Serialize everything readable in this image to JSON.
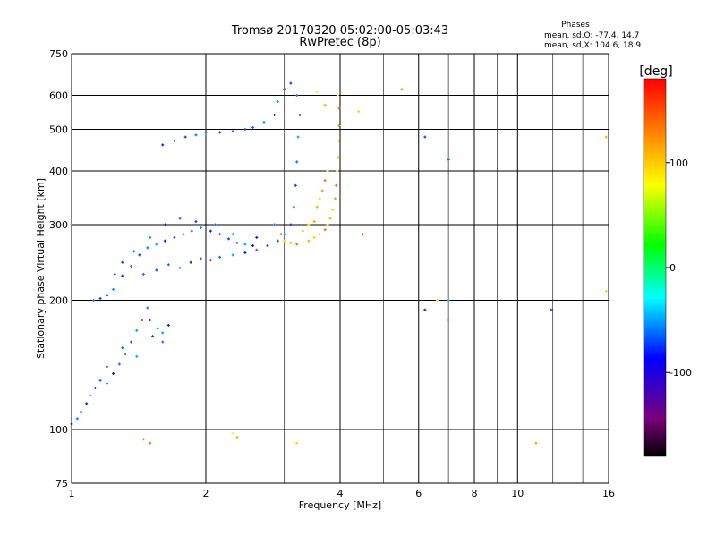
{
  "chart_data": {
    "type": "scatter",
    "title": "Tromsø 20170320 05:02:00-05:03:43",
    "subtitle": "RwPretec (8p)",
    "xlabel": "Frequency [MHz]",
    "ylabel": "Stationary phase Virtual Height [km]",
    "x_scale": "log",
    "y_scale": "log",
    "xlim": [
      1,
      16
    ],
    "ylim": [
      75,
      750
    ],
    "x_ticks": [
      "1",
      "2",
      "4",
      "6",
      "8",
      "10",
      "16"
    ],
    "y_ticks": [
      "75",
      "100",
      "200",
      "300",
      "400",
      "500",
      "600",
      "750"
    ],
    "grid": true,
    "phases_box": {
      "heading": "Phases",
      "line_o": "mean, sd,O: -77.4, 14.7",
      "line_x": "mean, sd,X: 104.6, 18.9"
    },
    "colorbar": {
      "unit": "[deg]",
      "range": [
        -180,
        180
      ],
      "ticks": [
        "100",
        "0",
        "-100"
      ],
      "colors": [
        "#000000",
        "#7a007a",
        "#0000ff",
        "#00ffff",
        "#00ff00",
        "#ffff00",
        "#ff8000",
        "#ff0000"
      ]
    },
    "series": [
      {
        "color_hint": "blue/cyan (O-mode)",
        "points": [
          [
            1.0,
            103
          ],
          [
            1.03,
            106
          ],
          [
            1.05,
            110
          ],
          [
            1.08,
            115
          ],
          [
            1.1,
            120
          ],
          [
            1.13,
            125
          ],
          [
            1.16,
            130
          ],
          [
            1.2,
            128
          ],
          [
            1.24,
            135
          ],
          [
            1.28,
            142
          ],
          [
            1.32,
            150
          ],
          [
            1.36,
            160
          ],
          [
            1.4,
            170
          ],
          [
            1.44,
            180
          ],
          [
            1.48,
            192
          ],
          [
            1.52,
            165
          ],
          [
            1.56,
            172
          ],
          [
            1.6,
            168
          ],
          [
            1.65,
            175
          ],
          [
            1.12,
            200
          ],
          [
            1.16,
            202
          ],
          [
            1.2,
            205
          ],
          [
            1.24,
            212
          ],
          [
            1.3,
            228
          ],
          [
            1.36,
            240
          ],
          [
            1.42,
            255
          ],
          [
            1.48,
            265
          ],
          [
            1.55,
            270
          ],
          [
            1.62,
            275
          ],
          [
            1.7,
            280
          ],
          [
            1.78,
            285
          ],
          [
            1.86,
            290
          ],
          [
            1.95,
            295
          ],
          [
            2.05,
            290
          ],
          [
            2.15,
            285
          ],
          [
            2.25,
            278
          ],
          [
            2.35,
            272
          ],
          [
            2.45,
            270
          ],
          [
            2.55,
            268
          ],
          [
            1.45,
            230
          ],
          [
            1.55,
            235
          ],
          [
            1.65,
            242
          ],
          [
            1.75,
            238
          ],
          [
            1.85,
            245
          ],
          [
            1.95,
            250
          ],
          [
            2.05,
            248
          ],
          [
            2.15,
            252
          ],
          [
            2.3,
            255
          ],
          [
            2.45,
            258
          ],
          [
            2.6,
            262
          ],
          [
            2.75,
            268
          ],
          [
            2.9,
            275
          ],
          [
            3.0,
            285
          ],
          [
            3.1,
            300
          ],
          [
            3.15,
            330
          ],
          [
            3.18,
            370
          ],
          [
            3.2,
            420
          ],
          [
            3.22,
            480
          ],
          [
            3.25,
            540
          ],
          [
            3.2,
            600
          ],
          [
            3.1,
            640
          ],
          [
            3.0,
            620
          ],
          [
            2.9,
            580
          ],
          [
            1.6,
            460
          ],
          [
            1.7,
            470
          ],
          [
            1.8,
            480
          ],
          [
            1.9,
            485
          ],
          [
            2.0,
            490
          ],
          [
            2.15,
            492
          ],
          [
            2.3,
            495
          ],
          [
            2.45,
            500
          ],
          [
            2.55,
            505
          ],
          [
            2.7,
            520
          ],
          [
            2.85,
            540
          ],
          [
            1.25,
            230
          ],
          [
            1.3,
            245
          ],
          [
            1.38,
            260
          ],
          [
            1.5,
            280
          ],
          [
            1.62,
            300
          ],
          [
            1.75,
            310
          ],
          [
            1.9,
            305
          ],
          [
            2.1,
            300
          ],
          [
            2.3,
            285
          ],
          [
            2.6,
            280
          ],
          [
            2.85,
            300
          ],
          [
            1.2,
            140
          ],
          [
            1.3,
            155
          ],
          [
            1.4,
            148
          ],
          [
            1.5,
            180
          ],
          [
            1.6,
            160
          ],
          [
            6.2,
            480
          ],
          [
            7.0,
            425
          ],
          [
            7.0,
            200
          ],
          [
            6.2,
            190
          ],
          [
            7.0,
            180
          ],
          [
            11.9,
            190
          ]
        ]
      },
      {
        "color_hint": "yellow/orange (X-mode)",
        "points": [
          [
            3.0,
            275
          ],
          [
            3.1,
            272
          ],
          [
            3.2,
            270
          ],
          [
            3.3,
            272
          ],
          [
            3.4,
            275
          ],
          [
            3.5,
            280
          ],
          [
            3.6,
            285
          ],
          [
            3.7,
            292
          ],
          [
            3.75,
            300
          ],
          [
            3.8,
            310
          ],
          [
            3.85,
            325
          ],
          [
            3.9,
            345
          ],
          [
            3.92,
            370
          ],
          [
            3.94,
            400
          ],
          [
            3.96,
            430
          ],
          [
            3.98,
            470
          ],
          [
            3.98,
            510
          ],
          [
            3.98,
            560
          ],
          [
            3.95,
            600
          ],
          [
            3.55,
            330
          ],
          [
            3.6,
            345
          ],
          [
            3.65,
            360
          ],
          [
            3.7,
            380
          ],
          [
            3.75,
            400
          ],
          [
            3.3,
            290
          ],
          [
            3.4,
            300
          ],
          [
            3.5,
            305
          ],
          [
            2.95,
            285
          ],
          [
            3.55,
            610
          ],
          [
            3.7,
            570
          ],
          [
            4.4,
            550
          ],
          [
            5.5,
            620
          ],
          [
            4.5,
            285
          ],
          [
            6.6,
            200
          ],
          [
            15.8,
            480
          ],
          [
            15.8,
            210
          ],
          [
            1.45,
            95
          ],
          [
            1.5,
            93
          ],
          [
            2.3,
            98
          ],
          [
            2.35,
            96
          ],
          [
            3.2,
            93
          ],
          [
            11.0,
            93
          ]
        ]
      }
    ]
  }
}
